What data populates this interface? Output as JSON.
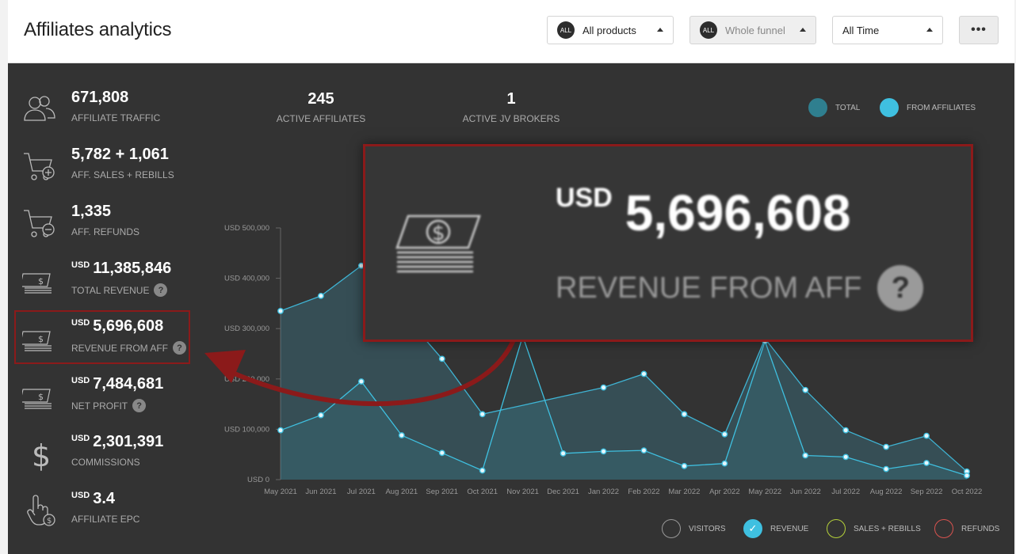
{
  "header": {
    "title": "Affiliates analytics",
    "products_dropdown": {
      "badge": "ALL",
      "label": "All products"
    },
    "funnel_dropdown": {
      "badge": "ALL",
      "label": "Whole funnel"
    },
    "time_dropdown": {
      "label": "All Time"
    },
    "more_label": "•••"
  },
  "stats": [
    {
      "icon": "users-icon",
      "value": "671,808",
      "currency": "",
      "label": "AFFILIATE TRAFFIC",
      "help": false
    },
    {
      "icon": "cart-plus-icon",
      "value": "5,782 + 1,061",
      "currency": "",
      "label": "AFF. SALES + REBILLS",
      "help": false
    },
    {
      "icon": "cart-minus-icon",
      "value": "1,335",
      "currency": "",
      "label": "AFF. REFUNDS",
      "help": false
    },
    {
      "icon": "money-stack-icon",
      "value": "11,385,846",
      "currency": "USD",
      "label": "TOTAL REVENUE",
      "help": true
    },
    {
      "icon": "money-stack-icon",
      "value": "5,696,608",
      "currency": "USD",
      "label": "REVENUE FROM AFF",
      "help": true
    },
    {
      "icon": "money-stack-icon",
      "value": "7,484,681",
      "currency": "USD",
      "label": "NET PROFIT",
      "help": true
    },
    {
      "icon": "dollar-icon",
      "value": "2,301,391",
      "currency": "USD",
      "label": "COMMISSIONS",
      "help": false
    },
    {
      "icon": "hand-click-icon",
      "value": "3.4",
      "currency": "USD",
      "label": "AFFILIATE EPC",
      "help": false
    }
  ],
  "help_glyph": "?",
  "top_kpis": [
    {
      "value": "245",
      "label": "ACTIVE AFFILIATES"
    },
    {
      "value": "1",
      "label": "ACTIVE JV BROKERS"
    }
  ],
  "legend_top": [
    {
      "label": "TOTAL",
      "color": "#2f7f8f"
    },
    {
      "label": "FROM AFFILIATES",
      "color": "#3fc0e0"
    }
  ],
  "legend_bottom": [
    {
      "label": "VISITORS",
      "checked": false,
      "color": "#999999"
    },
    {
      "label": "REVENUE",
      "checked": true,
      "color": "#3fc0e0"
    },
    {
      "label": "SALES + REBILLS",
      "checked": false,
      "color": "#b5d13a"
    },
    {
      "label": "REFUNDS",
      "checked": false,
      "color": "#d9534f"
    }
  ],
  "zoom": {
    "currency": "USD",
    "value": "5,696,608",
    "label": "REVENUE FROM AFF",
    "help": "?"
  },
  "chart_data": {
    "type": "area",
    "x": [
      "May 2021",
      "Jun 2021",
      "Jul 2021",
      "Aug 2021",
      "Sep 2021",
      "Oct 2021",
      "Nov 2021",
      "Dec 2021",
      "Jan 2022",
      "Feb 2022",
      "Mar 2022",
      "Apr 2022",
      "May 2022",
      "Jun 2022",
      "Jul 2022",
      "Aug 2022",
      "Sep 2022",
      "Oct 2022"
    ],
    "y_ticks": [
      "USD 0",
      "USD 100,000",
      "USD 200,000",
      "USD 300,000",
      "USD 400,000",
      "USD 500,000"
    ],
    "ylim": [
      0,
      500000
    ],
    "series": [
      {
        "name": "TOTAL",
        "values": [
          335000,
          365000,
          425000,
          null,
          240000,
          130000,
          null,
          null,
          183000,
          210000,
          130000,
          90000,
          280000,
          178000,
          98000,
          65000,
          87000,
          16000
        ]
      },
      {
        "name": "FROM AFFILIATES",
        "values": [
          98000,
          128000,
          195000,
          88000,
          53000,
          18000,
          285000,
          52000,
          56000,
          58000,
          27000,
          32000,
          275000,
          48000,
          45000,
          21000,
          33000,
          8000
        ]
      }
    ]
  }
}
